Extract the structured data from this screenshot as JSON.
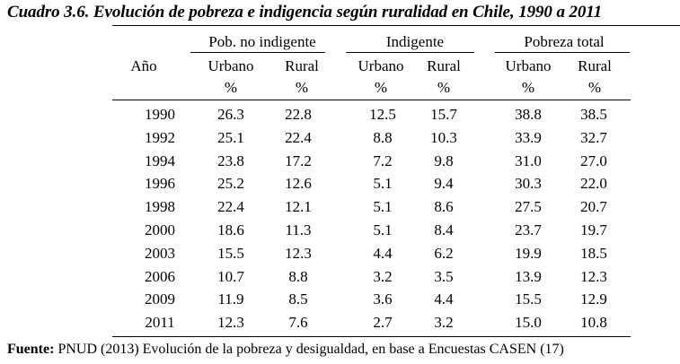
{
  "title": "Cuadro 3.6. Evolución de pobreza e indigencia según ruralidad en Chile, 1990 a 2011",
  "header": {
    "year_label": "Año",
    "groups": [
      "Pob. no indigente",
      "Indigente",
      "Pobreza total"
    ],
    "sub_labels": [
      "Urbano",
      "Rural",
      "Urbano",
      "Rural",
      "Urbano",
      "Rural"
    ],
    "unit": "%"
  },
  "rows": [
    {
      "year": "1990",
      "values": [
        "26.3",
        "22.8",
        "12.5",
        "15.7",
        "38.8",
        "38.5"
      ]
    },
    {
      "year": "1992",
      "values": [
        "25.1",
        "22.4",
        "8.8",
        "10.3",
        "33.9",
        "32.7"
      ]
    },
    {
      "year": "1994",
      "values": [
        "23.8",
        "17.2",
        "7.2",
        "9.8",
        "31.0",
        "27.0"
      ]
    },
    {
      "year": "1996",
      "values": [
        "25.2",
        "12.6",
        "5.1",
        "9.4",
        "30.3",
        "22.0"
      ]
    },
    {
      "year": "1998",
      "values": [
        "22.4",
        "12.1",
        "5.1",
        "8.6",
        "27.5",
        "20.7"
      ]
    },
    {
      "year": "2000",
      "values": [
        "18.6",
        "11.3",
        "5.1",
        "8.4",
        "23.7",
        "19.7"
      ]
    },
    {
      "year": "2003",
      "values": [
        "15.5",
        "12.3",
        "4.4",
        "6.2",
        "19.9",
        "18.5"
      ]
    },
    {
      "year": "2006",
      "values": [
        "10.7",
        "8.8",
        "3.2",
        "3.5",
        "13.9",
        "12.3"
      ]
    },
    {
      "year": "2009",
      "values": [
        "11.9",
        "8.5",
        "3.6",
        "4.4",
        "15.5",
        "12.9"
      ]
    },
    {
      "year": "2011",
      "values": [
        "12.3",
        "7.6",
        "2.7",
        "3.2",
        "15.0",
        "10.8"
      ]
    }
  ],
  "footnote": {
    "label": "Fuente:",
    "text": " PNUD (2013) Evolución de la pobreza y desigualdad, en base a Encuestas CASEN (17)"
  }
}
